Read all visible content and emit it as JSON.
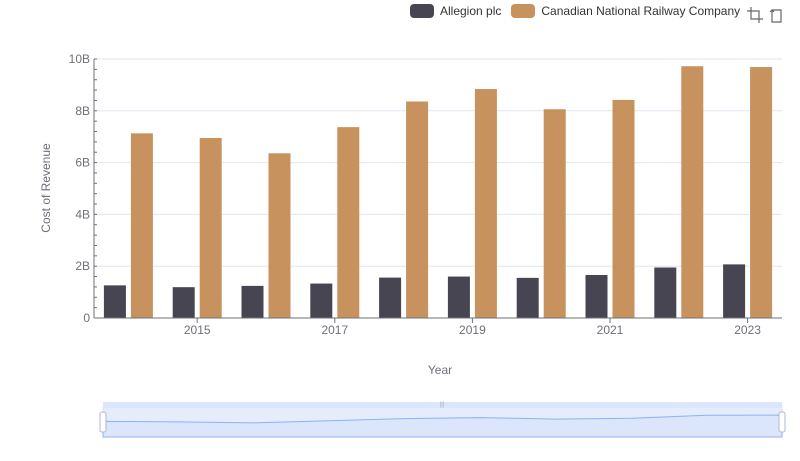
{
  "colors": {
    "series_0": "#474551",
    "series_1": "#c8925e",
    "axis": "#6e7079",
    "grid": "#e0e6f1",
    "zoom_fill": "#dbe5fb",
    "zoom_border": "#acb8d1",
    "zoom_line": "#8fb0f7"
  },
  "toolbox": {
    "zoom_icon": "zoom-icon",
    "restore_icon": "restore-icon"
  },
  "chart_data": {
    "type": "bar",
    "xlabel": "Year",
    "ylabel": "Cost of Revenue",
    "categories": [
      "2014",
      "2015",
      "2016",
      "2017",
      "2018",
      "2019",
      "2020",
      "2021",
      "2022",
      "2023"
    ],
    "x_tick_labels": [
      "2015",
      "2017",
      "2019",
      "2021",
      "2023"
    ],
    "y_ticks": [
      {
        "value": 0,
        "label": "0"
      },
      {
        "value": 2000000000,
        "label": "2B"
      },
      {
        "value": 4000000000,
        "label": "4B"
      },
      {
        "value": 6000000000,
        "label": "6B"
      },
      {
        "value": 8000000000,
        "label": "8B"
      },
      {
        "value": 10000000000,
        "label": "10B"
      }
    ],
    "ylim": [
      0,
      10000000000
    ],
    "grid": true,
    "legend_position": "top-right",
    "series": [
      {
        "name": "Allegion plc",
        "values": [
          1260000000,
          1190000000,
          1240000000,
          1330000000,
          1560000000,
          1600000000,
          1550000000,
          1660000000,
          1950000000,
          2070000000
        ]
      },
      {
        "name": "Canadian National Railway Company",
        "values": [
          7130000000,
          6950000000,
          6360000000,
          7370000000,
          8360000000,
          8840000000,
          8060000000,
          8420000000,
          9720000000,
          9690000000
        ]
      }
    ]
  }
}
